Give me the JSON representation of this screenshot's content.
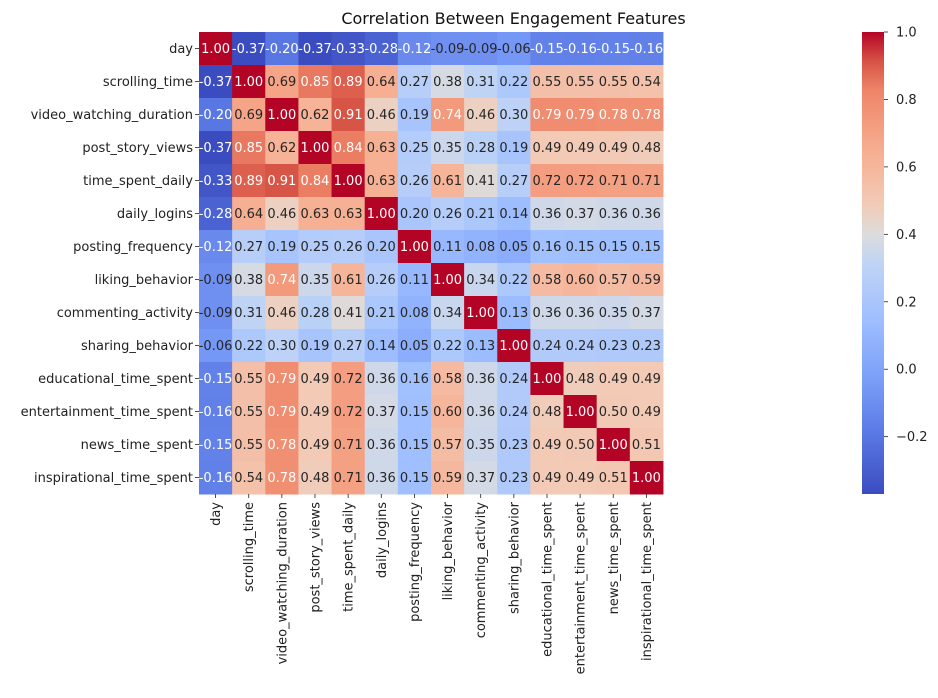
{
  "chart_data": {
    "type": "heatmap",
    "title": "Correlation Between Engagement Features",
    "labels": [
      "day",
      "scrolling_time",
      "video_watching_duration",
      "post_story_views",
      "time_spent_daily",
      "daily_logins",
      "posting_frequency",
      "liking_behavior",
      "commenting_activity",
      "sharing_behavior",
      "educational_time_spent",
      "entertainment_time_spent",
      "news_time_spent",
      "inspirational_time_spent"
    ],
    "matrix": [
      [
        1.0,
        -0.37,
        -0.2,
        -0.37,
        -0.33,
        -0.28,
        -0.12,
        -0.09,
        -0.09,
        -0.06,
        -0.15,
        -0.16,
        -0.15,
        -0.16
      ],
      [
        -0.37,
        1.0,
        0.69,
        0.85,
        0.89,
        0.64,
        0.27,
        0.38,
        0.31,
        0.22,
        0.55,
        0.55,
        0.55,
        0.54
      ],
      [
        -0.2,
        0.69,
        1.0,
        0.62,
        0.91,
        0.46,
        0.19,
        0.74,
        0.46,
        0.3,
        0.79,
        0.79,
        0.78,
        0.78
      ],
      [
        -0.37,
        0.85,
        0.62,
        1.0,
        0.84,
        0.63,
        0.25,
        0.35,
        0.28,
        0.19,
        0.49,
        0.49,
        0.49,
        0.48
      ],
      [
        -0.33,
        0.89,
        0.91,
        0.84,
        1.0,
        0.63,
        0.26,
        0.61,
        0.41,
        0.27,
        0.72,
        0.72,
        0.71,
        0.71
      ],
      [
        -0.28,
        0.64,
        0.46,
        0.63,
        0.63,
        1.0,
        0.2,
        0.26,
        0.21,
        0.14,
        0.36,
        0.37,
        0.36,
        0.36
      ],
      [
        -0.12,
        0.27,
        0.19,
        0.25,
        0.26,
        0.2,
        1.0,
        0.11,
        0.08,
        0.05,
        0.16,
        0.15,
        0.15,
        0.15
      ],
      [
        -0.09,
        0.38,
        0.74,
        0.35,
        0.61,
        0.26,
        0.11,
        1.0,
        0.34,
        0.22,
        0.58,
        0.6,
        0.57,
        0.59
      ],
      [
        -0.09,
        0.31,
        0.46,
        0.28,
        0.41,
        0.21,
        0.08,
        0.34,
        1.0,
        0.13,
        0.36,
        0.36,
        0.35,
        0.37
      ],
      [
        -0.06,
        0.22,
        0.3,
        0.19,
        0.27,
        0.14,
        0.05,
        0.22,
        0.13,
        1.0,
        0.24,
        0.24,
        0.23,
        0.23
      ],
      [
        -0.15,
        0.55,
        0.79,
        0.49,
        0.72,
        0.36,
        0.16,
        0.58,
        0.36,
        0.24,
        1.0,
        0.48,
        0.49,
        0.49
      ],
      [
        -0.16,
        0.55,
        0.79,
        0.49,
        0.72,
        0.37,
        0.15,
        0.6,
        0.36,
        0.24,
        0.48,
        1.0,
        0.5,
        0.49
      ],
      [
        -0.15,
        0.55,
        0.78,
        0.49,
        0.71,
        0.36,
        0.15,
        0.57,
        0.35,
        0.23,
        0.49,
        0.5,
        1.0,
        0.51
      ],
      [
        -0.16,
        0.54,
        0.78,
        0.48,
        0.71,
        0.36,
        0.15,
        0.59,
        0.37,
        0.23,
        0.49,
        0.49,
        0.51,
        1.0
      ]
    ],
    "colormap": "coolwarm",
    "vmin": -0.37,
    "vmax": 1.0,
    "colorbar_ticks": [
      1.0,
      0.8,
      0.6,
      0.4,
      0.2,
      0.0,
      -0.2
    ],
    "colorbar_tick_labels": [
      "1.0",
      "0.8",
      "0.6",
      "0.4",
      "0.2",
      "0.0",
      "−0.2"
    ]
  }
}
